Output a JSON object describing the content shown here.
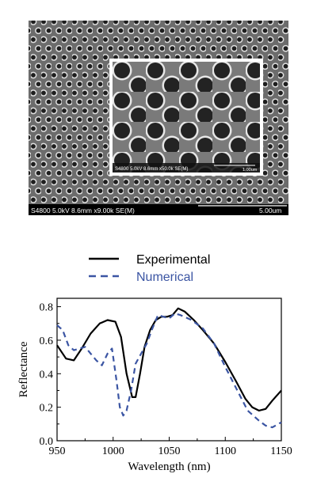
{
  "sem": {
    "main_caption": "S4800 5.0kV 8.6mm x9.00k SE(M)",
    "main_scale": "5.00um",
    "inset_caption": "S4800 5.0kV 8.6mm x50.0k SE(M)",
    "inset_scale": "1.00um",
    "colors": {
      "background": "#6e6e6e",
      "hole": "#202020",
      "rim": "#e8e8e8",
      "inset_border": "#ffffff",
      "caption_bar": "#000000"
    }
  },
  "chart_data": {
    "type": "line",
    "xlabel": "Wavelength (nm)",
    "ylabel": "Reflectance",
    "xlim": [
      950,
      1150
    ],
    "ylim": [
      0.0,
      0.85
    ],
    "xticks": [
      "950",
      "1000",
      "1050",
      "1100",
      "1150"
    ],
    "yticks": [
      "0.0",
      "0.2",
      "0.4",
      "0.6",
      "0.8"
    ],
    "legend": "top",
    "series": [
      {
        "name": "Experimental",
        "color": "#000000",
        "style": "solid",
        "x": [
          950,
          958,
          965,
          972,
          980,
          988,
          995,
          1002,
          1007,
          1012,
          1017,
          1020,
          1024,
          1028,
          1033,
          1038,
          1043,
          1048,
          1053,
          1058,
          1064,
          1072,
          1080,
          1090,
          1100,
          1110,
          1118,
          1124,
          1130,
          1136,
          1142,
          1150
        ],
        "y": [
          0.57,
          0.49,
          0.48,
          0.55,
          0.64,
          0.7,
          0.72,
          0.71,
          0.62,
          0.4,
          0.26,
          0.26,
          0.4,
          0.56,
          0.66,
          0.72,
          0.74,
          0.74,
          0.75,
          0.79,
          0.77,
          0.72,
          0.66,
          0.58,
          0.47,
          0.35,
          0.25,
          0.2,
          0.18,
          0.19,
          0.24,
          0.3
        ]
      },
      {
        "name": "Numerical",
        "color": "#3b55a3",
        "style": "dashed",
        "x": [
          950,
          955,
          960,
          965,
          970,
          975,
          980,
          985,
          990,
          995,
          999,
          1003,
          1006,
          1009,
          1012,
          1016,
          1020,
          1025,
          1030,
          1035,
          1040,
          1045,
          1050,
          1055,
          1060,
          1070,
          1080,
          1090,
          1100,
          1110,
          1120,
          1130,
          1136,
          1142,
          1150
        ],
        "y": [
          0.69,
          0.66,
          0.57,
          0.54,
          0.55,
          0.56,
          0.52,
          0.48,
          0.45,
          0.52,
          0.55,
          0.36,
          0.2,
          0.15,
          0.18,
          0.3,
          0.46,
          0.52,
          0.58,
          0.67,
          0.75,
          0.74,
          0.73,
          0.76,
          0.75,
          0.72,
          0.67,
          0.58,
          0.44,
          0.31,
          0.18,
          0.12,
          0.09,
          0.08,
          0.11
        ]
      }
    ]
  }
}
